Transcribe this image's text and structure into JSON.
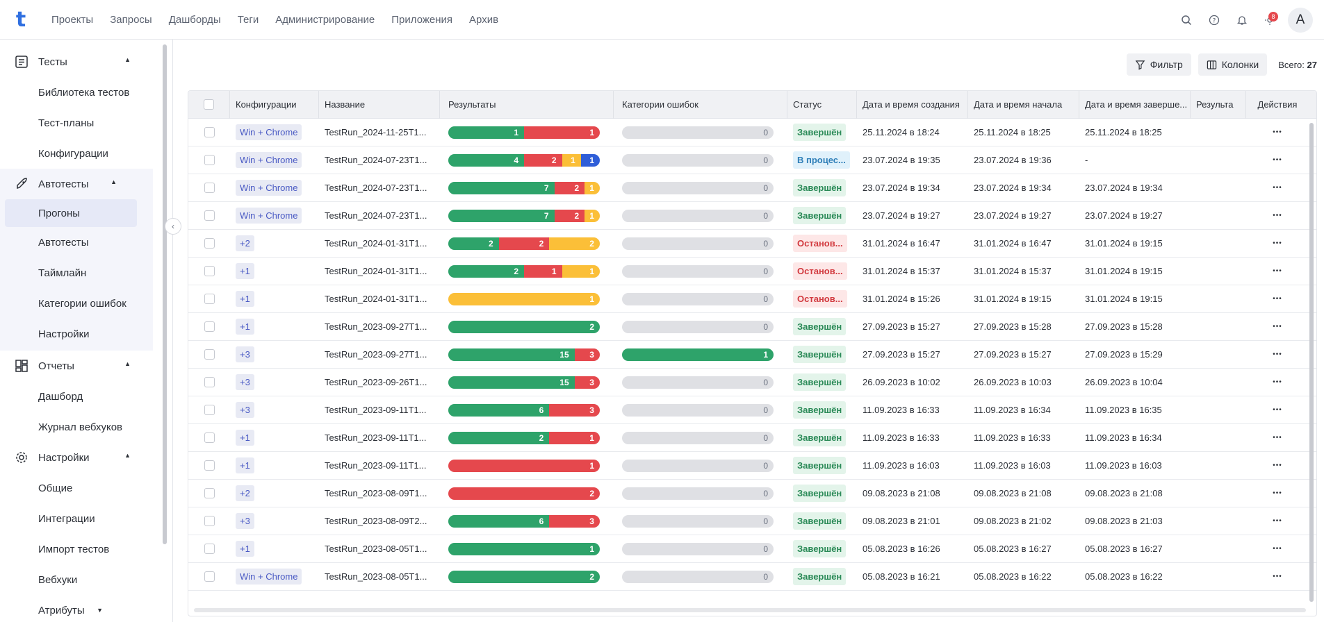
{
  "topnav": {
    "logo": "t",
    "items": [
      "Проекты",
      "Запросы",
      "Дашборды",
      "Теги",
      "Администрирование",
      "Приложения",
      "Архив"
    ],
    "notif_count": "8",
    "avatar": "A"
  },
  "sidebar": {
    "groups": [
      {
        "label": "Тесты",
        "icon": "list-icon",
        "items": [
          "Библиотека тестов",
          "Тест-планы",
          "Конфигурации"
        ]
      },
      {
        "label": "Автотесты",
        "icon": "rocket-icon",
        "items": [
          "Прогоны",
          "Автотесты",
          "Таймлайн",
          "Категории ошибок",
          "Настройки"
        ],
        "active": "Прогоны"
      },
      {
        "label": "Отчеты",
        "icon": "dashboard-icon",
        "items": [
          "Дашборд",
          "Журнал вебхуков"
        ]
      },
      {
        "label": "Настройки",
        "icon": "gear-icon",
        "items": [
          "Общие",
          "Интеграции",
          "Импорт тестов",
          "Вебхуки",
          "Атрибуты"
        ]
      }
    ]
  },
  "toolbar": {
    "filter": "Фильтр",
    "columns": "Колонки",
    "total_label": "Всего:",
    "total": "27"
  },
  "table": {
    "headers": [
      "Конфигурации",
      "Название",
      "Результаты",
      "Категории ошибок",
      "Статус",
      "Дата и время создания",
      "Дата и время начала",
      "Дата и время заверше...",
      "Результа",
      "Действия"
    ],
    "rows": [
      {
        "cfg": "Win + Chrome",
        "name": "TestRun_2024-11-25T1...",
        "res": [
          [
            "g",
            1,
            "1"
          ],
          [
            "r",
            1,
            "1"
          ]
        ],
        "err": "0",
        "errfull": false,
        "status": "Завершён",
        "st": "done",
        "created": "25.11.2024 в 18:24",
        "start": "25.11.2024 в 18:25",
        "end": "25.11.2024 в 18:25"
      },
      {
        "cfg": "Win + Chrome",
        "name": "TestRun_2024-07-23T1...",
        "res": [
          [
            "g",
            4,
            "4"
          ],
          [
            "r",
            2,
            "2"
          ],
          [
            "y",
            1,
            "1"
          ],
          [
            "b",
            1,
            "1"
          ]
        ],
        "err": "0",
        "errfull": false,
        "status": "В процес...",
        "st": "prog",
        "created": "23.07.2024 в 19:35",
        "start": "23.07.2024 в 19:36",
        "end": "-"
      },
      {
        "cfg": "Win + Chrome",
        "name": "TestRun_2024-07-23T1...",
        "res": [
          [
            "g",
            7,
            "7"
          ],
          [
            "r",
            2,
            "2"
          ],
          [
            "y",
            1,
            "1"
          ]
        ],
        "err": "0",
        "errfull": false,
        "status": "Завершён",
        "st": "done",
        "created": "23.07.2024 в 19:34",
        "start": "23.07.2024 в 19:34",
        "end": "23.07.2024 в 19:34"
      },
      {
        "cfg": "Win + Chrome",
        "name": "TestRun_2024-07-23T1...",
        "res": [
          [
            "g",
            7,
            "7"
          ],
          [
            "r",
            2,
            "2"
          ],
          [
            "y",
            1,
            "1"
          ]
        ],
        "err": "0",
        "errfull": false,
        "status": "Завершён",
        "st": "done",
        "created": "23.07.2024 в 19:27",
        "start": "23.07.2024 в 19:27",
        "end": "23.07.2024 в 19:27"
      },
      {
        "cfg": "+2",
        "name": "TestRun_2024-01-31T1...",
        "res": [
          [
            "g",
            2,
            "2"
          ],
          [
            "r",
            2,
            "2"
          ],
          [
            "y",
            2,
            "2"
          ]
        ],
        "err": "0",
        "errfull": false,
        "status": "Останов...",
        "st": "stop",
        "created": "31.01.2024 в 16:47",
        "start": "31.01.2024 в 16:47",
        "end": "31.01.2024 в 19:15"
      },
      {
        "cfg": "+1",
        "name": "TestRun_2024-01-31T1...",
        "res": [
          [
            "g",
            2,
            "2"
          ],
          [
            "r",
            1,
            "1"
          ],
          [
            "y",
            1,
            "1"
          ]
        ],
        "err": "0",
        "errfull": false,
        "status": "Останов...",
        "st": "stop",
        "created": "31.01.2024 в 15:37",
        "start": "31.01.2024 в 15:37",
        "end": "31.01.2024 в 19:15"
      },
      {
        "cfg": "+1",
        "name": "TestRun_2024-01-31T1...",
        "res": [
          [
            "y",
            1,
            "1"
          ]
        ],
        "err": "0",
        "errfull": false,
        "status": "Останов...",
        "st": "stop",
        "created": "31.01.2024 в 15:26",
        "start": "31.01.2024 в 19:15",
        "end": "31.01.2024 в 19:15"
      },
      {
        "cfg": "+1",
        "name": "TestRun_2023-09-27T1...",
        "res": [
          [
            "g",
            2,
            "2"
          ]
        ],
        "err": "0",
        "errfull": false,
        "status": "Завершён",
        "st": "done",
        "created": "27.09.2023 в 15:27",
        "start": "27.09.2023 в 15:28",
        "end": "27.09.2023 в 15:28"
      },
      {
        "cfg": "+3",
        "name": "TestRun_2023-09-27T1...",
        "res": [
          [
            "g",
            15,
            "15"
          ],
          [
            "r",
            3,
            "3"
          ]
        ],
        "err": "1",
        "errfull": true,
        "status": "Завершён",
        "st": "done",
        "created": "27.09.2023 в 15:27",
        "start": "27.09.2023 в 15:27",
        "end": "27.09.2023 в 15:29"
      },
      {
        "cfg": "+3",
        "name": "TestRun_2023-09-26T1...",
        "res": [
          [
            "g",
            15,
            "15"
          ],
          [
            "r",
            3,
            "3"
          ]
        ],
        "err": "0",
        "errfull": false,
        "status": "Завершён",
        "st": "done",
        "created": "26.09.2023 в 10:02",
        "start": "26.09.2023 в 10:03",
        "end": "26.09.2023 в 10:04"
      },
      {
        "cfg": "+3",
        "name": "TestRun_2023-09-11T1...",
        "res": [
          [
            "g",
            6,
            "6"
          ],
          [
            "r",
            3,
            "3"
          ]
        ],
        "err": "0",
        "errfull": false,
        "status": "Завершён",
        "st": "done",
        "created": "11.09.2023 в 16:33",
        "start": "11.09.2023 в 16:34",
        "end": "11.09.2023 в 16:35"
      },
      {
        "cfg": "+1",
        "name": "TestRun_2023-09-11T1...",
        "res": [
          [
            "g",
            2,
            "2"
          ],
          [
            "r",
            1,
            "1"
          ]
        ],
        "err": "0",
        "errfull": false,
        "status": "Завершён",
        "st": "done",
        "created": "11.09.2023 в 16:33",
        "start": "11.09.2023 в 16:33",
        "end": "11.09.2023 в 16:34"
      },
      {
        "cfg": "+1",
        "name": "TestRun_2023-09-11T1...",
        "res": [
          [
            "r",
            1,
            "1"
          ]
        ],
        "err": "0",
        "errfull": false,
        "status": "Завершён",
        "st": "done",
        "created": "11.09.2023 в 16:03",
        "start": "11.09.2023 в 16:03",
        "end": "11.09.2023 в 16:03"
      },
      {
        "cfg": "+2",
        "name": "TestRun_2023-08-09T1...",
        "res": [
          [
            "r",
            2,
            "2"
          ]
        ],
        "err": "0",
        "errfull": false,
        "status": "Завершён",
        "st": "done",
        "created": "09.08.2023 в 21:08",
        "start": "09.08.2023 в 21:08",
        "end": "09.08.2023 в 21:08"
      },
      {
        "cfg": "+3",
        "name": "TestRun_2023-08-09T2...",
        "res": [
          [
            "g",
            6,
            "6"
          ],
          [
            "r",
            3,
            "3"
          ]
        ],
        "err": "0",
        "errfull": false,
        "status": "Завершён",
        "st": "done",
        "created": "09.08.2023 в 21:01",
        "start": "09.08.2023 в 21:02",
        "end": "09.08.2023 в 21:03"
      },
      {
        "cfg": "+1",
        "name": "TestRun_2023-08-05T1...",
        "res": [
          [
            "g",
            1,
            "1"
          ]
        ],
        "err": "0",
        "errfull": false,
        "status": "Завершён",
        "st": "done",
        "created": "05.08.2023 в 16:26",
        "start": "05.08.2023 в 16:27",
        "end": "05.08.2023 в 16:27"
      },
      {
        "cfg": "Win + Chrome",
        "name": "TestRun_2023-08-05T1...",
        "res": [
          [
            "g",
            2,
            "2"
          ]
        ],
        "err": "0",
        "errfull": false,
        "status": "Завершён",
        "st": "done",
        "created": "05.08.2023 в 16:21",
        "start": "05.08.2023 в 16:22",
        "end": "05.08.2023 в 16:22"
      }
    ]
  }
}
